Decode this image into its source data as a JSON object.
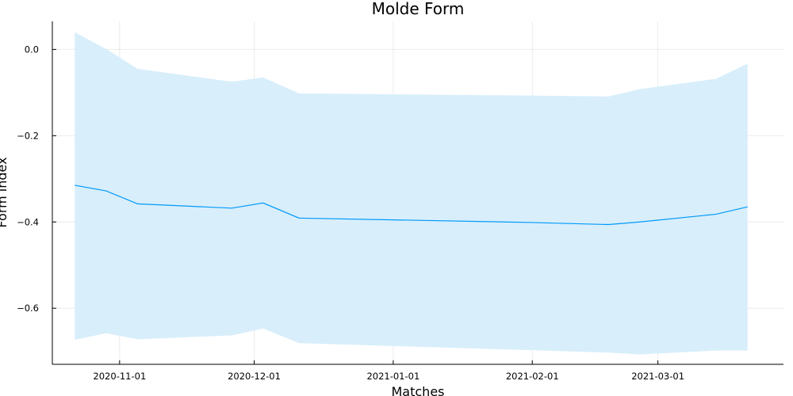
{
  "chart_data": {
    "type": "line",
    "title": "Molde Form",
    "xlabel": "Matches",
    "ylabel": "Form index",
    "x_ticks": [
      "2020-11-01",
      "2020-12-01",
      "2021-01-01",
      "2021-02-01",
      "2021-03-01"
    ],
    "y_ticks": [
      "0.0",
      "−0.2",
      "−0.4",
      "−0.6"
    ],
    "ylim": [
      -0.73,
      0.065
    ],
    "xlim": [
      "2020-10-17",
      "2021-03-29"
    ],
    "grid": true,
    "series": [
      {
        "color": "#009AFA",
        "band_color": "#D8EEFB",
        "x": [
          "2020-10-22",
          "2020-10-29",
          "2020-11-05",
          "2020-11-26",
          "2020-12-03",
          "2020-12-11",
          "2021-01-31",
          "2021-02-18",
          "2021-02-25",
          "2021-03-14",
          "2021-03-21"
        ],
        "y": [
          -0.315,
          -0.328,
          -0.358,
          -0.368,
          -0.356,
          -0.391,
          -0.401,
          -0.406,
          -0.4,
          -0.382,
          -0.365
        ],
        "lower": [
          -0.673,
          -0.658,
          -0.672,
          -0.663,
          -0.647,
          -0.681,
          -0.697,
          -0.703,
          -0.707,
          -0.698,
          -0.698
        ],
        "upper": [
          0.04,
          0.001,
          -0.045,
          -0.075,
          -0.065,
          -0.102,
          -0.107,
          -0.109,
          -0.092,
          -0.068,
          -0.033
        ]
      }
    ]
  }
}
